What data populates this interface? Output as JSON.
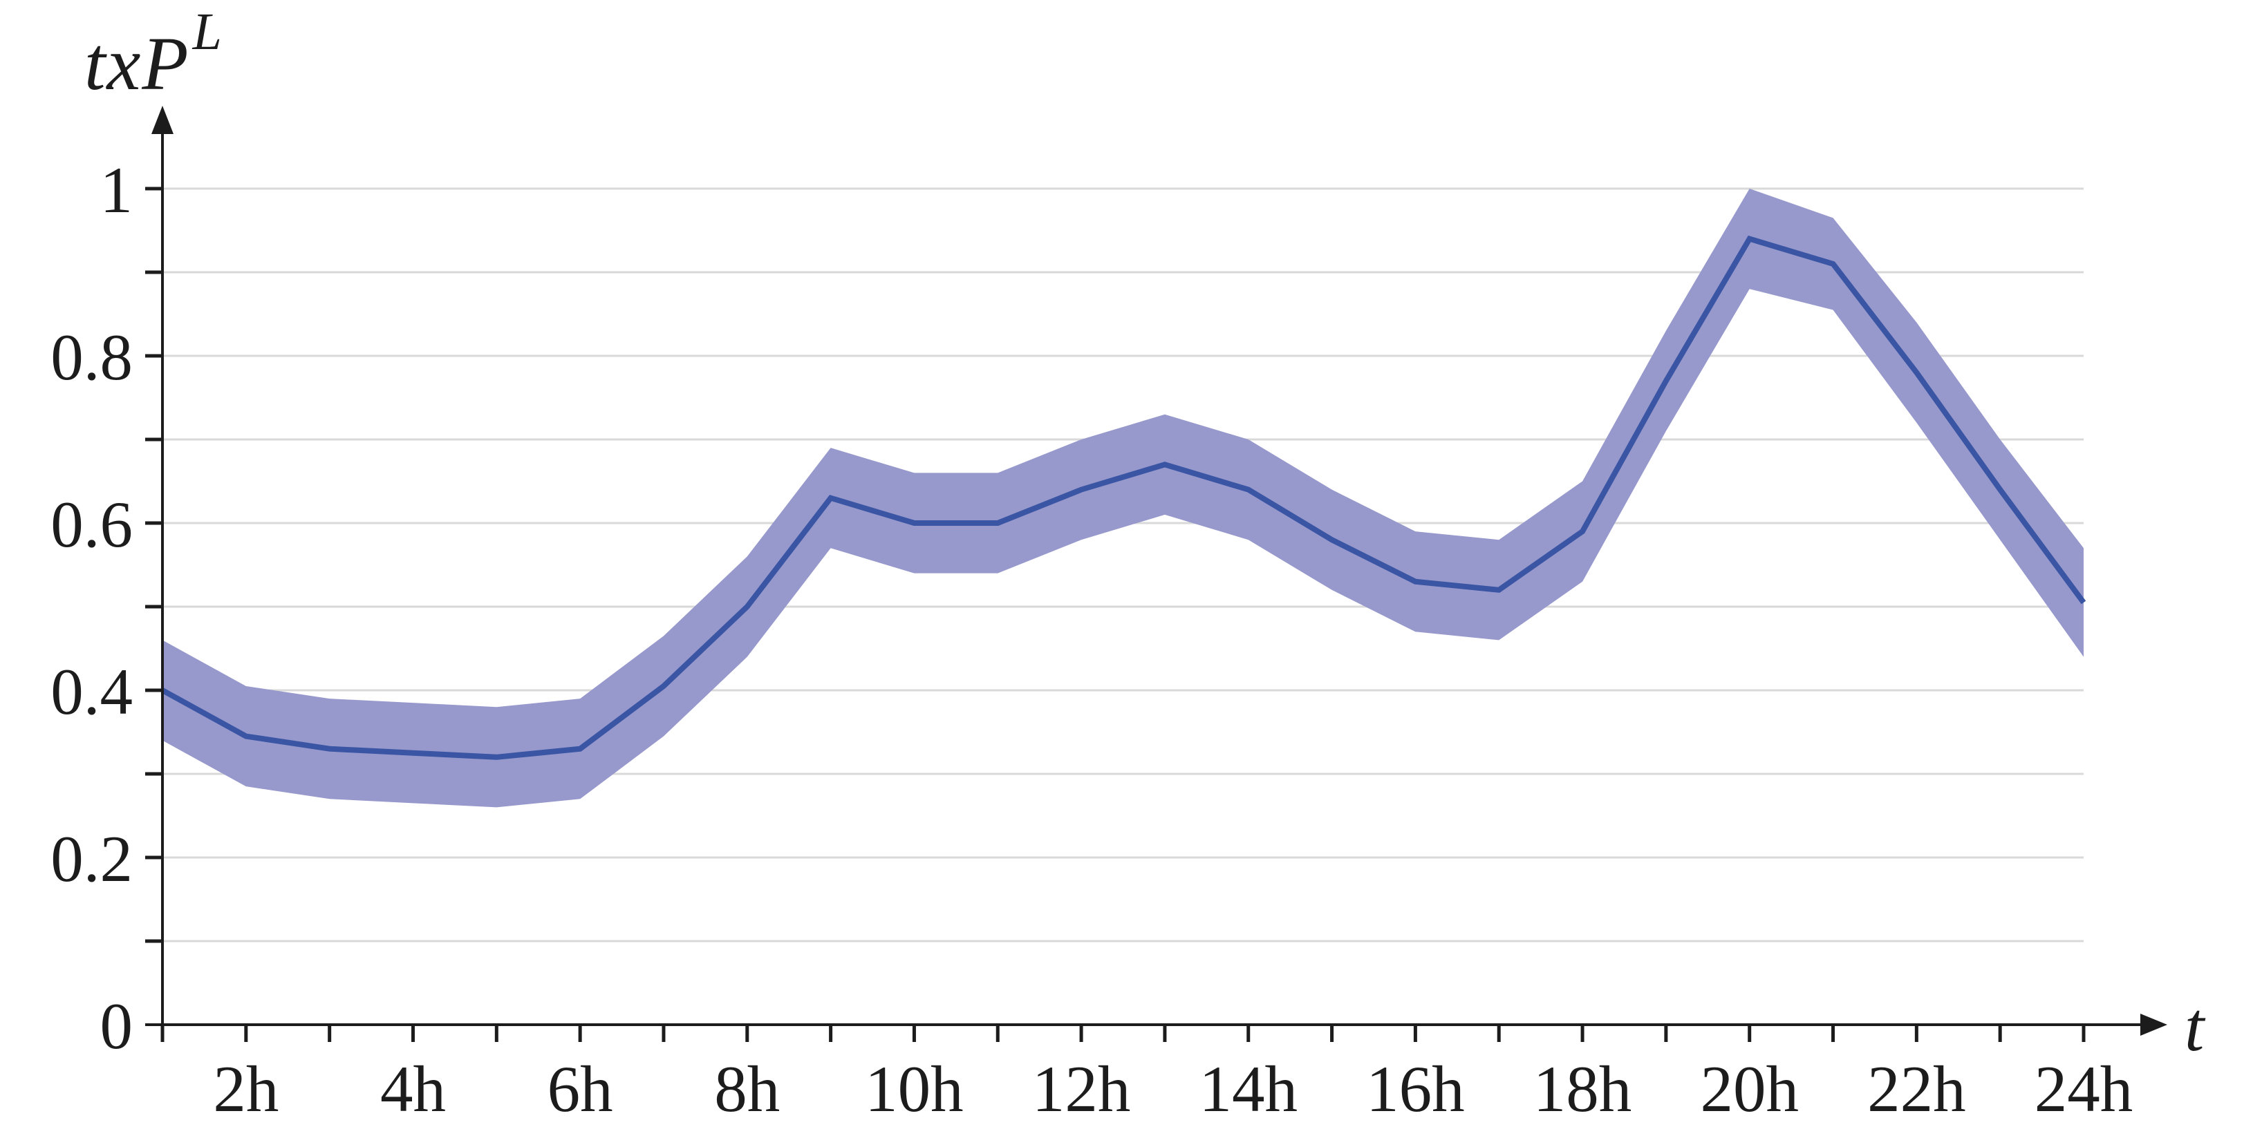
{
  "figure": {
    "ylabel_base": "txP",
    "ylabel_sup": "L",
    "xlabel": "t"
  },
  "chart_data": {
    "type": "line",
    "title": "",
    "ylabel": "txP^L",
    "xlabel": "t",
    "x_unit": "hours",
    "x": [
      1,
      2,
      3,
      4,
      5,
      6,
      7,
      8,
      9,
      10,
      11,
      12,
      13,
      14,
      15,
      16,
      17,
      18,
      19,
      20,
      21,
      22,
      23,
      24
    ],
    "series": [
      {
        "name": "mean",
        "values": [
          0.4,
          0.345,
          0.33,
          0.325,
          0.32,
          0.33,
          0.405,
          0.5,
          0.63,
          0.6,
          0.6,
          0.64,
          0.67,
          0.64,
          0.58,
          0.53,
          0.52,
          0.59,
          0.77,
          0.94,
          0.91,
          0.78,
          0.64,
          0.505
        ]
      },
      {
        "name": "band_upper",
        "values": [
          0.46,
          0.405,
          0.39,
          0.385,
          0.38,
          0.39,
          0.465,
          0.56,
          0.69,
          0.66,
          0.66,
          0.7,
          0.73,
          0.7,
          0.64,
          0.59,
          0.58,
          0.65,
          0.83,
          1.0,
          0.965,
          0.84,
          0.7,
          0.57
        ]
      },
      {
        "name": "band_lower",
        "values": [
          0.34,
          0.285,
          0.27,
          0.265,
          0.26,
          0.27,
          0.345,
          0.44,
          0.57,
          0.54,
          0.54,
          0.58,
          0.61,
          0.58,
          0.52,
          0.47,
          0.46,
          0.53,
          0.71,
          0.88,
          0.855,
          0.72,
          0.58,
          0.44
        ]
      }
    ],
    "x_tick_hours": [
      1,
      2,
      3,
      4,
      5,
      6,
      7,
      8,
      9,
      10,
      11,
      12,
      13,
      14,
      15,
      16,
      17,
      18,
      19,
      20,
      21,
      22,
      23,
      24
    ],
    "x_labeled_ticks": [
      {
        "x": 2,
        "label": "2h"
      },
      {
        "x": 4,
        "label": "4h"
      },
      {
        "x": 6,
        "label": "6h"
      },
      {
        "x": 8,
        "label": "8h"
      },
      {
        "x": 10,
        "label": "10h"
      },
      {
        "x": 12,
        "label": "12h"
      },
      {
        "x": 14,
        "label": "14h"
      },
      {
        "x": 16,
        "label": "16h"
      },
      {
        "x": 18,
        "label": "18h"
      },
      {
        "x": 20,
        "label": "20h"
      },
      {
        "x": 22,
        "label": "22h"
      },
      {
        "x": 24,
        "label": "24h"
      }
    ],
    "y_gridlines": [
      0.1,
      0.2,
      0.3,
      0.4,
      0.5,
      0.6,
      0.7,
      0.8,
      0.9,
      1.0
    ],
    "y_labeled_ticks": [
      {
        "v": 0,
        "label": "0"
      },
      {
        "v": 0.2,
        "label": "0.2"
      },
      {
        "v": 0.4,
        "label": "0.4"
      },
      {
        "v": 0.6,
        "label": "0.6"
      },
      {
        "v": 0.8,
        "label": "0.8"
      },
      {
        "v": 1,
        "label": "1"
      }
    ],
    "xlim": [
      1,
      24
    ],
    "ylim": [
      0,
      1.05
    ],
    "grid": "horizontal",
    "legend": "none",
    "colors": {
      "line": "#3a55a3",
      "band": "#9798cc",
      "grid": "#d9d9d9",
      "axis": "#1c1c1c"
    }
  }
}
